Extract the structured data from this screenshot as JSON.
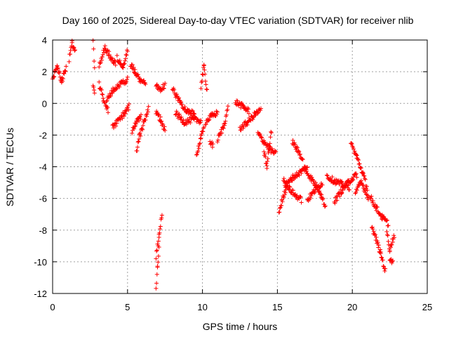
{
  "chart_data": {
    "type": "scatter",
    "title": "Day 160 of 2025, Sidereal Day-to-day VTEC variation (SDTVAR) for receiver nlib",
    "xlabel": "GPS time / hours",
    "ylabel": "SDTVAR / TECUs",
    "xlim": [
      0,
      25
    ],
    "ylim": [
      -12,
      4
    ],
    "xticks": [
      "0",
      "5",
      "10",
      "15",
      "20",
      "25"
    ],
    "yticks": [
      "4",
      "2",
      "0",
      "-2",
      "-4",
      "-6",
      "-8",
      "-10",
      "-12"
    ],
    "grid": true,
    "marker": "+",
    "color": "#ff0000",
    "series": [
      {
        "name": "SDTVAR",
        "segments": [
          {
            "x": [
              0.0,
              0.3,
              0.6,
              0.9
            ],
            "y": [
              1.5,
              2.4,
              1.4,
              2.2
            ]
          },
          {
            "x": [
              1.1,
              1.3,
              1.5
            ],
            "y": [
              2.8,
              3.8,
              3.2
            ]
          },
          {
            "x": [
              2.7,
              2.8
            ],
            "y": [
              3.8,
              2.2
            ]
          },
          {
            "x": [
              2.7,
              2.8
            ],
            "y": [
              1.2,
              0.7
            ]
          },
          {
            "x": [
              3.1,
              3.5,
              3.9,
              4.2
            ],
            "y": [
              2.4,
              3.5,
              2.9,
              2.5
            ]
          },
          {
            "x": [
              4.3,
              4.7,
              5.0
            ],
            "y": [
              2.9,
              2.3,
              3.4
            ]
          },
          {
            "x": [
              3.1,
              3.4,
              3.7
            ],
            "y": [
              1.2,
              0.3,
              -0.5
            ]
          },
          {
            "x": [
              3.6,
              4.1,
              4.6,
              5.0
            ],
            "y": [
              0.2,
              0.9,
              1.3,
              1.5
            ]
          },
          {
            "x": [
              4.0,
              4.4,
              4.8,
              5.1
            ],
            "y": [
              -1.5,
              -1.1,
              -0.6,
              -0.2
            ]
          },
          {
            "x": [
              5.2,
              5.5,
              5.8,
              6.2
            ],
            "y": [
              2.5,
              2.0,
              1.5,
              1.2
            ]
          },
          {
            "x": [
              5.6,
              5.8,
              6.1,
              6.4
            ],
            "y": [
              -3.1,
              -2.1,
              -1.2,
              -0.3
            ]
          },
          {
            "x": [
              5.3,
              5.6,
              5.9
            ],
            "y": [
              -1.8,
              -1.2,
              -0.8
            ]
          },
          {
            "x": [
              6.9,
              7.0,
              7.1
            ],
            "y": [
              -11.8,
              -10.3,
              -9.2
            ]
          },
          {
            "x": [
              6.9,
              7.1,
              7.3
            ],
            "y": [
              -9.7,
              -8.4,
              -7.0
            ]
          },
          {
            "x": [
              6.9,
              7.2,
              7.5
            ],
            "y": [
              1.1,
              0.9,
              1.1
            ]
          },
          {
            "x": [
              6.9,
              7.2,
              7.5
            ],
            "y": [
              -0.6,
              -1.0,
              -1.7
            ]
          },
          {
            "x": [
              8.0,
              8.5,
              9.0,
              9.5
            ],
            "y": [
              0.9,
              0.1,
              -0.5,
              -0.7
            ]
          },
          {
            "x": [
              8.2,
              8.8,
              9.4,
              9.9
            ],
            "y": [
              -0.6,
              -1.2,
              -1.0,
              -1.1
            ]
          },
          {
            "x": [
              9.6,
              9.9,
              10.1
            ],
            "y": [
              -3.3,
              -2.2,
              -1.4
            ]
          },
          {
            "x": [
              9.9,
              10.1,
              10.3
            ],
            "y": [
              1.1,
              2.3,
              0.8
            ]
          },
          {
            "x": [
              10.2,
              10.6,
              11.0
            ],
            "y": [
              -1.2,
              -0.8,
              -0.6
            ]
          },
          {
            "x": [
              10.5,
              10.7
            ],
            "y": [
              -2.4,
              -2.7
            ]
          },
          {
            "x": [
              11.0,
              11.4,
              11.7
            ],
            "y": [
              -2.3,
              -1.5,
              -0.3
            ]
          },
          {
            "x": [
              12.2,
              12.7,
              13.1
            ],
            "y": [
              0.1,
              -0.2,
              -0.5
            ]
          },
          {
            "x": [
              12.5,
              13.0,
              13.5,
              13.9
            ],
            "y": [
              -1.6,
              -1.2,
              -0.7,
              -0.4
            ]
          },
          {
            "x": [
              13.7,
              14.1,
              14.5,
              14.9
            ],
            "y": [
              -1.9,
              -2.4,
              -2.9,
              -3.2
            ]
          },
          {
            "x": [
              14.1,
              14.3,
              14.6
            ],
            "y": [
              -3.0,
              -4.0,
              -1.7
            ]
          },
          {
            "x": [
              15.1,
              15.3,
              15.6
            ],
            "y": [
              -6.9,
              -6.2,
              -5.3
            ]
          },
          {
            "x": [
              15.4,
              15.8,
              16.2,
              16.6
            ],
            "y": [
              -4.7,
              -5.4,
              -5.8,
              -6.1
            ]
          },
          {
            "x": [
              16.0,
              16.3,
              16.7
            ],
            "y": [
              -2.4,
              -2.9,
              -3.5
            ]
          },
          {
            "x": [
              15.5,
              16.0,
              16.6,
              17.0
            ],
            "y": [
              -5.3,
              -4.7,
              -4.3,
              -4.0
            ]
          },
          {
            "x": [
              16.8,
              17.3,
              17.8,
              18.2
            ],
            "y": [
              -4.1,
              -4.8,
              -5.5,
              -6.5
            ]
          },
          {
            "x": [
              17.0,
              17.5,
              18.0
            ],
            "y": [
              -6.1,
              -5.5,
              -5.0
            ]
          },
          {
            "x": [
              18.3,
              18.8,
              19.3,
              19.8
            ],
            "y": [
              -4.6,
              -4.9,
              -5.1,
              -5.3
            ]
          },
          {
            "x": [
              18.8,
              19.3,
              19.8,
              20.3
            ],
            "y": [
              -6.2,
              -5.5,
              -4.9,
              -4.5
            ]
          },
          {
            "x": [
              19.9,
              20.3,
              20.7,
              21.0
            ],
            "y": [
              -2.5,
              -3.4,
              -4.4,
              -5.4
            ]
          },
          {
            "x": [
              20.2,
              20.6,
              21.1
            ],
            "y": [
              -5.6,
              -5.0,
              -6.0
            ]
          },
          {
            "x": [
              21.2,
              21.6,
              22.0,
              22.4
            ],
            "y": [
              -5.9,
              -6.6,
              -7.2,
              -7.6
            ]
          },
          {
            "x": [
              21.3,
              21.6,
              21.9,
              22.2
            ],
            "y": [
              -7.8,
              -8.6,
              -9.5,
              -10.6
            ]
          },
          {
            "x": [
              22.3,
              22.5,
              22.8
            ],
            "y": [
              -8.1,
              -9.2,
              -8.3
            ]
          },
          {
            "x": [
              22.5,
              22.7
            ],
            "y": [
              -9.9,
              -10.1
            ]
          }
        ]
      }
    ]
  }
}
